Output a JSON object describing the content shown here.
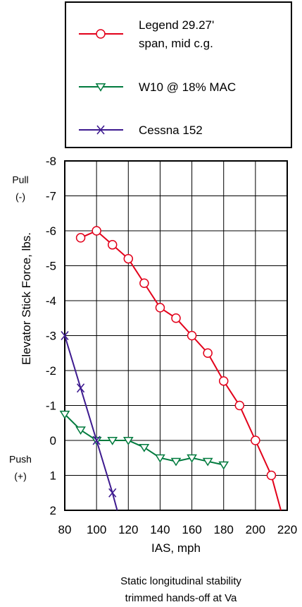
{
  "chart_data": {
    "type": "line",
    "xlabel": "IAS, mph",
    "ylabel": "Elevator Stick Force, lbs.",
    "caption": [
      "Static longitudinal stability",
      "trimmed hands-off at Va"
    ],
    "xlim": [
      80,
      220
    ],
    "ylim": [
      -8,
      2
    ],
    "y_inverted": true,
    "grid": true,
    "legend_position": "top",
    "x_ticks": [
      "80",
      "100",
      "120",
      "140",
      "160",
      "180",
      "200",
      "220"
    ],
    "y_ticks": [
      "-8",
      "-7",
      "-6",
      "-5",
      "-4",
      "-3",
      "-2",
      "-1",
      "0",
      "1",
      "2"
    ],
    "y_annotations": [
      {
        "lines": [
          "Pull",
          "(-)"
        ],
        "y": -7
      },
      {
        "lines": [
          "Push",
          "(+)"
        ],
        "y": 1
      }
    ],
    "series": [
      {
        "name": "Legend 29.27' span, mid c.g.",
        "legend_lines": [
          "Legend 29.27'",
          "span, mid c.g."
        ],
        "color": "#e2001a",
        "marker": "circle",
        "x": [
          90,
          100,
          110,
          120,
          130,
          140,
          150,
          160,
          170,
          180,
          190,
          200,
          210
        ],
        "y": [
          -5.8,
          -6.0,
          -5.6,
          -5.2,
          -4.5,
          -3.8,
          -3.5,
          -3.0,
          -2.5,
          -1.7,
          -1.0,
          0.0,
          1.0
        ],
        "extend_to": [
          216,
          2.0
        ]
      },
      {
        "name": "W10 @ 18% MAC",
        "legend_lines": [
          "W10 @ 18% MAC"
        ],
        "color": "#007a3d",
        "marker": "triangle-down",
        "x": [
          80,
          90,
          100,
          110,
          120,
          130,
          140,
          150,
          160,
          170,
          180
        ],
        "y": [
          -0.75,
          -0.3,
          0.0,
          0.0,
          0.0,
          0.2,
          0.5,
          0.6,
          0.5,
          0.6,
          0.7
        ]
      },
      {
        "name": "Cessna 152",
        "legend_lines": [
          "Cessna 152"
        ],
        "color": "#3d1a8f",
        "marker": "x",
        "x": [
          80,
          90,
          100,
          110
        ],
        "y": [
          -3.0,
          -1.5,
          0.0,
          1.5
        ],
        "extend_to": [
          113,
          2.0
        ]
      }
    ]
  }
}
